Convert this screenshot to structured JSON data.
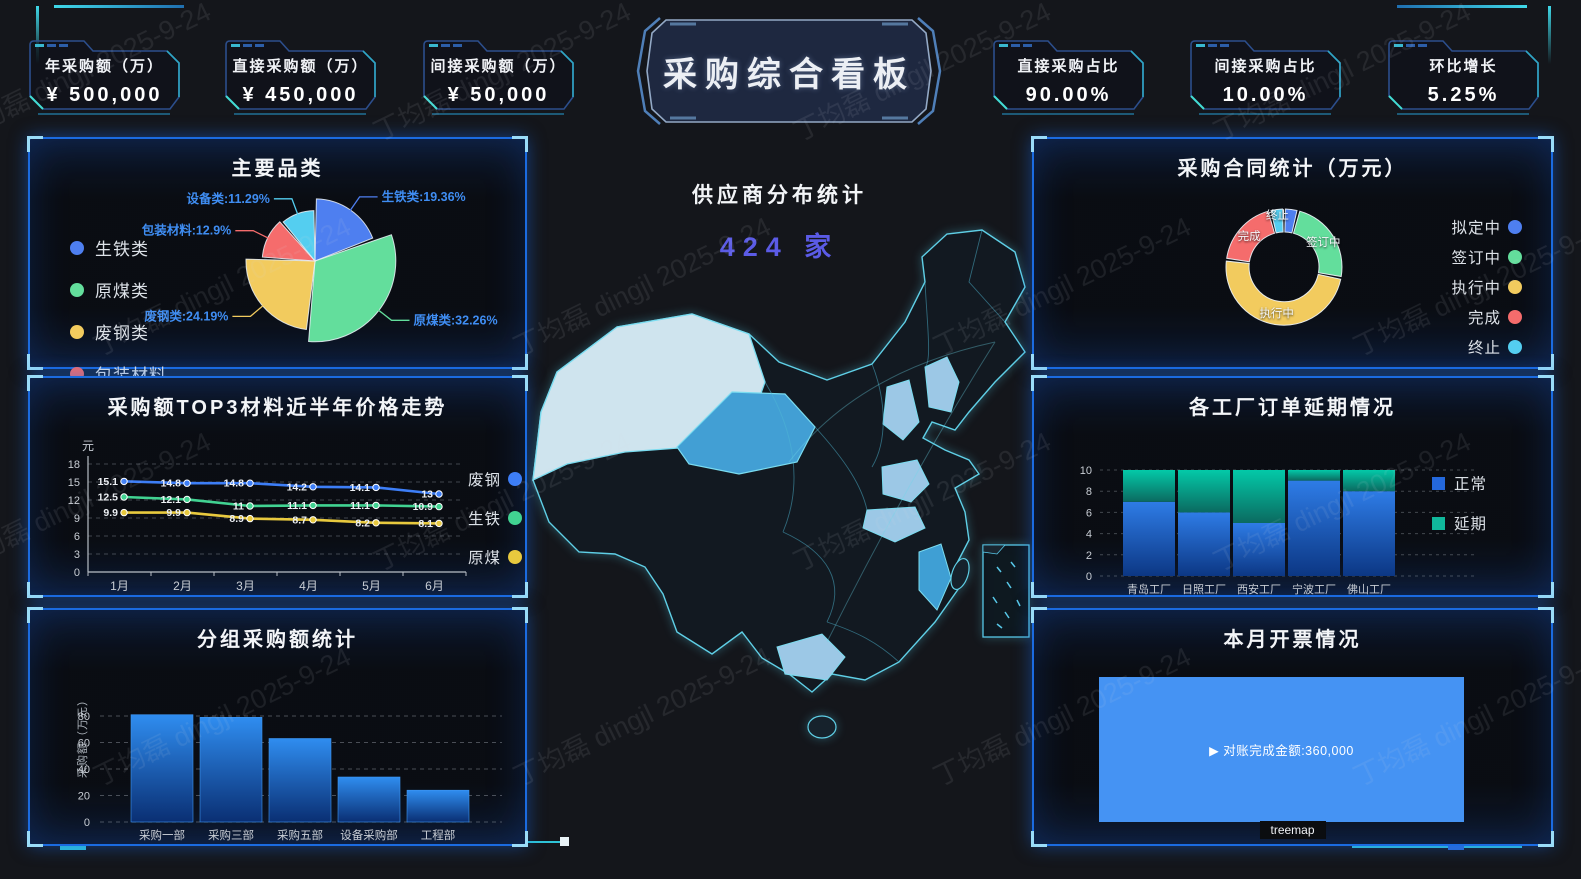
{
  "watermark": {
    "text": "丁均磊 dingjl 2025-9-24"
  },
  "header": {
    "title": "采购综合看板",
    "kpis_left": [
      {
        "label": "年采购额（万）",
        "value": "¥ 500,000"
      },
      {
        "label": "直接采购额（万）",
        "value": "¥ 450,000"
      },
      {
        "label": "间接采购额（万）",
        "value": "¥ 50,000"
      }
    ],
    "kpis_right": [
      {
        "label": "直接采购占比",
        "value": "90.00%"
      },
      {
        "label": "间接采购占比",
        "value": "10.00%"
      },
      {
        "label": "环比增长",
        "value": "5.25%"
      }
    ]
  },
  "map_section": {
    "title": "供应商分布统计",
    "count": "424 家",
    "count_color": "#5b5be6"
  },
  "chart_data": [
    {
      "id": "pie-categories",
      "type": "pie",
      "variant": "rose",
      "title": "主要品类",
      "categories": [
        "生铁类",
        "原煤类",
        "废钢类",
        "包装材料",
        "设备类"
      ],
      "values": [
        19.36,
        32.26,
        24.19,
        12.9,
        11.29
      ],
      "labels": [
        "生铁类:19.36%",
        "原煤类:32.26%",
        "废钢类:24.19%",
        "包装材料:12.9%",
        "设备类:11.29%"
      ],
      "colors": [
        "#4e7ff0",
        "#63de9c",
        "#f2cb5e",
        "#f56c6c",
        "#54cef0"
      ],
      "label_color": "#3f8df2",
      "legend_position": "left"
    },
    {
      "id": "line-price",
      "type": "line",
      "title": "采购额TOP3材料近半年价格走势",
      "categories": [
        "1月",
        "2月",
        "3月",
        "4月",
        "5月",
        "6月"
      ],
      "series": [
        {
          "name": "废钢",
          "color": "#3d7ef7",
          "values": [
            15.1,
            14.8,
            14.8,
            14.2,
            14.1,
            13
          ]
        },
        {
          "name": "生铁",
          "color": "#41d392",
          "values": [
            12.5,
            12.1,
            11,
            11.1,
            11.1,
            10.9
          ]
        },
        {
          "name": "原煤",
          "color": "#e8c93e",
          "values": [
            9.9,
            9.9,
            8.9,
            8.7,
            8.2,
            8.1
          ]
        }
      ],
      "ylabel": "元",
      "ylim": [
        0,
        18
      ],
      "ystep": 3,
      "grid": true,
      "legend_position": "right"
    },
    {
      "id": "bar-group",
      "type": "bar",
      "title": "分组采购额统计",
      "categories": [
        "采购一部",
        "采购三部",
        "采购五部",
        "设备采购部",
        "工程部"
      ],
      "values": [
        81,
        79,
        63,
        34,
        24
      ],
      "ylabel": "采购额（万元）",
      "ylim": [
        0,
        80
      ],
      "ystep": 20,
      "grid": true,
      "bar_gradient": [
        "#2f8df0",
        "#0a2f73"
      ]
    },
    {
      "id": "donut-contracts",
      "type": "donut",
      "title": "采购合同统计（万元）",
      "categories": [
        "拟定中",
        "签订中",
        "执行中",
        "完成",
        "终止"
      ],
      "values": [
        4,
        24,
        49,
        19,
        4
      ],
      "colors": [
        "#4e7ff0",
        "#63de9c",
        "#f2cb5e",
        "#f56c6c",
        "#54cef0"
      ],
      "label_show": [
        "签订中",
        "执行中",
        "完成",
        "终止"
      ],
      "legend_position": "right"
    },
    {
      "id": "stack-delay",
      "type": "stacked_bar",
      "title": "各工厂订单延期情况",
      "categories": [
        "青岛工厂",
        "日照工厂",
        "西安工厂",
        "宁波工厂",
        "佛山工厂"
      ],
      "series": [
        {
          "name": "正常",
          "legend_color": "#2468dc",
          "gradient": [
            "#2e7ce6",
            "#0c3784"
          ],
          "values": [
            7,
            6,
            5,
            9,
            8
          ]
        },
        {
          "name": "延期",
          "legend_color": "#10b89c",
          "gradient": [
            "#03c9a8",
            "#0b6a60"
          ],
          "values": [
            3,
            4,
            5,
            1,
            2
          ]
        }
      ],
      "ylim": [
        0,
        10
      ],
      "ystep": 2,
      "grid": true,
      "legend_position": "right"
    },
    {
      "id": "treemap-invoice",
      "type": "treemap",
      "title": "本月开票情况",
      "node_label": "▶ 对账完成金额:360,000",
      "node_value": 360000,
      "node_color": "#4593f3",
      "breadcrumb": "treemap"
    }
  ]
}
